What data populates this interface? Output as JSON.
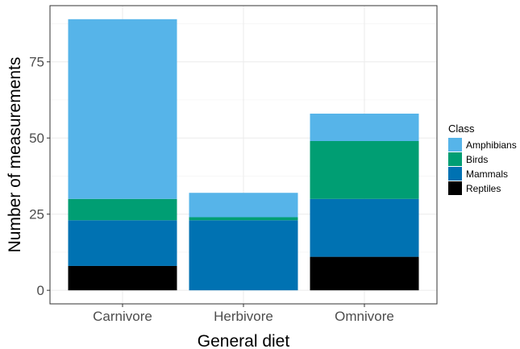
{
  "chart_data": {
    "type": "bar",
    "stacked": true,
    "categories": [
      "Carnivore",
      "Herbivore",
      "Omnivore"
    ],
    "series": [
      {
        "name": "Reptiles",
        "color": "#000000",
        "values": [
          8,
          0,
          11
        ]
      },
      {
        "name": "Mammals",
        "color": "#0072B2",
        "values": [
          15,
          23,
          19
        ]
      },
      {
        "name": "Birds",
        "color": "#009E73",
        "values": [
          7,
          1,
          19
        ]
      },
      {
        "name": "Amphibians",
        "color": "#56B4E9",
        "values": [
          59,
          8,
          9
        ]
      }
    ],
    "xlabel": "General diet",
    "ylabel": "Number of measurements",
    "ylim": [
      -4.45,
      93.45
    ],
    "yticks": [
      0,
      25,
      50,
      75
    ],
    "ytick_labels": [
      "0",
      "25",
      "50",
      "75"
    ],
    "grid": true,
    "legend": {
      "title": "Class",
      "position": "right",
      "entries": [
        "Amphibians",
        "Birds",
        "Mammals",
        "Reptiles"
      ]
    }
  }
}
